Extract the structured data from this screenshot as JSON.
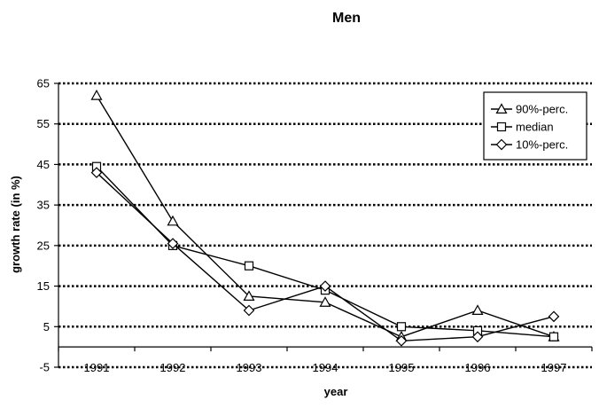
{
  "chart_data": {
    "type": "line",
    "title": "Men",
    "xlabel": "year",
    "ylabel": "growth rate (in %)",
    "categories": [
      "1991",
      "1992",
      "1993",
      "1994",
      "1995",
      "1996",
      "1997"
    ],
    "yticks": [
      65,
      55,
      45,
      35,
      25,
      15,
      5,
      -5
    ],
    "ylim": [
      -5,
      65
    ],
    "grid": true,
    "legend_position": "top-right",
    "series": [
      {
        "name": "90%-perc.",
        "marker": "triangle",
        "values": [
          62,
          31,
          12.5,
          11,
          2.5,
          9,
          2.5
        ]
      },
      {
        "name": "median",
        "marker": "square",
        "values": [
          44.5,
          25,
          20,
          14,
          5,
          4,
          2.5
        ]
      },
      {
        "name": "10%-perc.",
        "marker": "diamond",
        "values": [
          43,
          25.5,
          9,
          15,
          1.5,
          2.5,
          7.5
        ]
      }
    ]
  }
}
